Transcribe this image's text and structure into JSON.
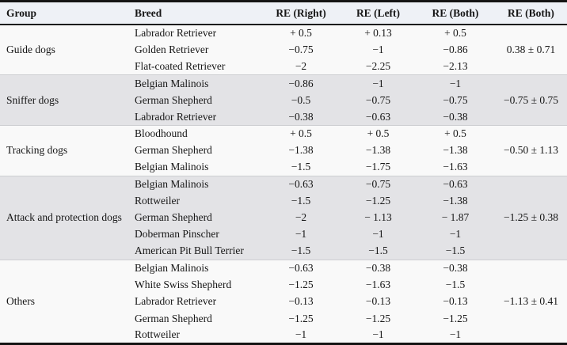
{
  "table": {
    "columns": [
      "Group",
      "Breed",
      "RE (Right)",
      "RE (Left)",
      "RE (Both)",
      "RE (Both)"
    ],
    "groups": [
      {
        "name": "Guide dogs",
        "summary": "0.38 ± 0.71",
        "rows": [
          {
            "breed": "Labrador Retriever",
            "values": [
              "+ 0.5",
              "+ 0.13",
              "+ 0.5"
            ]
          },
          {
            "breed": "Golden Retriever",
            "values": [
              "−0.75",
              "−1",
              "−0.86"
            ]
          },
          {
            "breed": "Flat-coated Retriever",
            "values": [
              "−2",
              "−2.25",
              "−2.13"
            ]
          }
        ]
      },
      {
        "name": "Sniffer dogs",
        "summary": "−0.75 ± 0.75",
        "rows": [
          {
            "breed": "Belgian Malinois",
            "values": [
              "−0.86",
              "−1",
              "−1"
            ]
          },
          {
            "breed": "German Shepherd",
            "values": [
              "−0.5",
              "−0.75",
              "−0.75"
            ]
          },
          {
            "breed": "Labrador Retriever",
            "values": [
              "−0.38",
              "−0.63",
              "−0.38"
            ]
          }
        ]
      },
      {
        "name": "Tracking dogs",
        "summary": "−0.50 ± 1.13",
        "rows": [
          {
            "breed": "Bloodhound",
            "values": [
              "+ 0.5",
              "+ 0.5",
              "+ 0.5"
            ]
          },
          {
            "breed": "German Shepherd",
            "values": [
              "−1.38",
              "−1.38",
              "−1.38"
            ]
          },
          {
            "breed": "Belgian Malinois",
            "values": [
              "−1.5",
              "−1.75",
              "−1.63"
            ]
          }
        ]
      },
      {
        "name": "Attack and protection dogs",
        "summary": "−1.25 ± 0.38",
        "rows": [
          {
            "breed": "Belgian Malinois",
            "values": [
              "−0.63",
              "−0.75",
              "−0.63"
            ]
          },
          {
            "breed": "Rottweiler",
            "values": [
              "−1.5",
              "−1.25",
              "−1.38"
            ]
          },
          {
            "breed": "German Shepherd",
            "values": [
              "−2",
              "− 1.13",
              "− 1.87"
            ]
          },
          {
            "breed": "Doberman Pinscher",
            "values": [
              "−1",
              "−1",
              "−1"
            ]
          },
          {
            "breed": "American Pit Bull Terrier",
            "values": [
              "−1.5",
              "−1.5",
              "−1.5"
            ]
          }
        ]
      },
      {
        "name": "Others",
        "summary": "−1.13 ± 0.41",
        "rows": [
          {
            "breed": "Belgian Malinois",
            "values": [
              "−0.63",
              "−0.38",
              "−0.38"
            ]
          },
          {
            "breed": "White Swiss Shepherd",
            "values": [
              "−1.25",
              "−1.63",
              "−1.5"
            ]
          },
          {
            "breed": "Labrador Retriever",
            "values": [
              "−0.13",
              "−0.13",
              "−0.13"
            ]
          },
          {
            "breed": "German Shepherd",
            "values": [
              "−1.25",
              "−1.25",
              "−1.25"
            ]
          },
          {
            "breed": "Rottweiler",
            "values": [
              "−1",
              "−1",
              "−1"
            ]
          }
        ]
      }
    ],
    "colors": {
      "header_bg": "#eef1f6",
      "band_light": "#f9f9f9",
      "band_dark": "#e3e3e6",
      "rule_dark": "#141414",
      "rule_light": "#cdced1",
      "text": "#161616"
    }
  }
}
